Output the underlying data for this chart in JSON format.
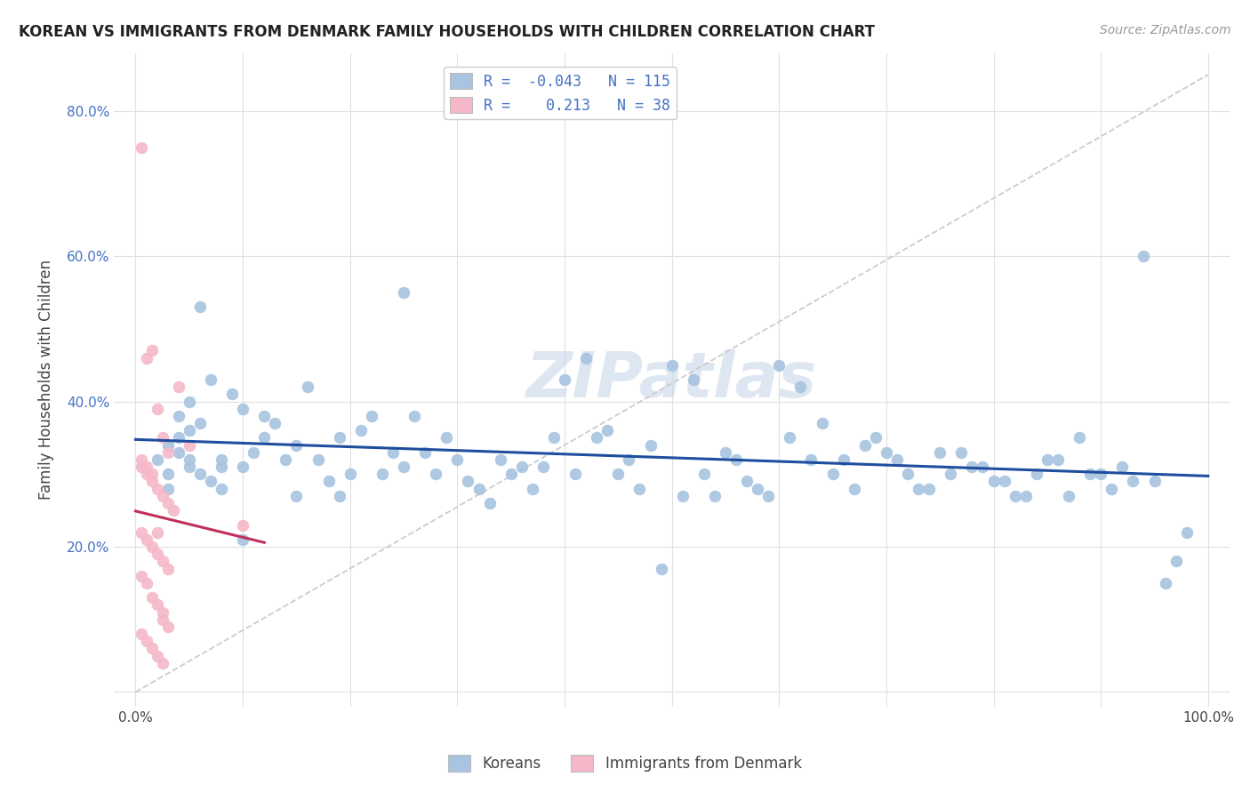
{
  "title": "KOREAN VS IMMIGRANTS FROM DENMARK FAMILY HOUSEHOLDS WITH CHILDREN CORRELATION CHART",
  "source": "Source: ZipAtlas.com",
  "ylabel": "Family Households with Children",
  "korean_color": "#a8c4e0",
  "denmark_color": "#f4b8c8",
  "korean_R": -0.043,
  "korean_N": 115,
  "denmark_R": 0.213,
  "denmark_N": 38,
  "legend_R_color": "#4472c4",
  "background_color": "#ffffff",
  "watermark_text": "ZIPatlas",
  "watermark_color": "#c8d8e8",
  "grid_color": "#e0e0e0",
  "korean_line_color": "#1f4e9e",
  "denmark_line_color": "#c0305a",
  "diag_color": "#cccccc",
  "korean_scatter_x": [
    0.02,
    0.03,
    0.04,
    0.05,
    0.03,
    0.04,
    0.06,
    0.05,
    0.07,
    0.08,
    0.06,
    0.05,
    0.03,
    0.04,
    0.05,
    0.07,
    0.09,
    0.1,
    0.12,
    0.11,
    0.08,
    0.1,
    0.13,
    0.15,
    0.14,
    0.12,
    0.16,
    0.18,
    0.2,
    0.19,
    0.21,
    0.22,
    0.17,
    0.19,
    0.23,
    0.25,
    0.26,
    0.28,
    0.3,
    0.32,
    0.27,
    0.29,
    0.31,
    0.33,
    0.35,
    0.37,
    0.4,
    0.38,
    0.42,
    0.44,
    0.41,
    0.43,
    0.46,
    0.48,
    0.5,
    0.52,
    0.49,
    0.51,
    0.53,
    0.55,
    0.57,
    0.59,
    0.56,
    0.58,
    0.6,
    0.62,
    0.64,
    0.61,
    0.63,
    0.65,
    0.67,
    0.7,
    0.72,
    0.68,
    0.71,
    0.73,
    0.75,
    0.78,
    0.8,
    0.82,
    0.85,
    0.88,
    0.9,
    0.92,
    0.95,
    0.34,
    0.36,
    0.39,
    0.45,
    0.47,
    0.54,
    0.66,
    0.69,
    0.74,
    0.76,
    0.77,
    0.79,
    0.81,
    0.83,
    0.84,
    0.86,
    0.87,
    0.89,
    0.91,
    0.93,
    0.94,
    0.96,
    0.97,
    0.98,
    0.24,
    0.06,
    0.08,
    0.1,
    0.15,
    0.25
  ],
  "korean_scatter_y": [
    0.32,
    0.3,
    0.33,
    0.31,
    0.28,
    0.35,
    0.3,
    0.32,
    0.29,
    0.31,
    0.37,
    0.36,
    0.34,
    0.38,
    0.4,
    0.43,
    0.41,
    0.39,
    0.35,
    0.33,
    0.28,
    0.31,
    0.37,
    0.34,
    0.32,
    0.38,
    0.42,
    0.29,
    0.3,
    0.27,
    0.36,
    0.38,
    0.32,
    0.35,
    0.3,
    0.31,
    0.38,
    0.3,
    0.32,
    0.28,
    0.33,
    0.35,
    0.29,
    0.26,
    0.3,
    0.28,
    0.43,
    0.31,
    0.46,
    0.36,
    0.3,
    0.35,
    0.32,
    0.34,
    0.45,
    0.43,
    0.17,
    0.27,
    0.3,
    0.33,
    0.29,
    0.27,
    0.32,
    0.28,
    0.45,
    0.42,
    0.37,
    0.35,
    0.32,
    0.3,
    0.28,
    0.33,
    0.3,
    0.34,
    0.32,
    0.28,
    0.33,
    0.31,
    0.29,
    0.27,
    0.32,
    0.35,
    0.3,
    0.31,
    0.29,
    0.32,
    0.31,
    0.35,
    0.3,
    0.28,
    0.27,
    0.32,
    0.35,
    0.28,
    0.3,
    0.33,
    0.31,
    0.29,
    0.27,
    0.3,
    0.32,
    0.27,
    0.3,
    0.28,
    0.29,
    0.6,
    0.15,
    0.18,
    0.22,
    0.33,
    0.53,
    0.32,
    0.21,
    0.27,
    0.55
  ],
  "denmark_scatter_x": [
    0.005,
    0.01,
    0.015,
    0.02,
    0.025,
    0.03,
    0.005,
    0.01,
    0.015,
    0.02,
    0.025,
    0.03,
    0.035,
    0.005,
    0.01,
    0.015,
    0.02,
    0.025,
    0.03,
    0.005,
    0.01,
    0.015,
    0.02,
    0.025,
    0.03,
    0.005,
    0.01,
    0.015,
    0.02,
    0.025,
    0.04,
    0.05,
    0.1,
    0.005,
    0.01,
    0.015,
    0.02,
    0.025
  ],
  "denmark_scatter_y": [
    0.75,
    0.46,
    0.47,
    0.39,
    0.35,
    0.33,
    0.31,
    0.3,
    0.29,
    0.28,
    0.27,
    0.26,
    0.25,
    0.22,
    0.21,
    0.2,
    0.19,
    0.18,
    0.17,
    0.16,
    0.15,
    0.13,
    0.12,
    0.11,
    0.09,
    0.08,
    0.07,
    0.06,
    0.05,
    0.04,
    0.42,
    0.34,
    0.23,
    0.32,
    0.31,
    0.3,
    0.22,
    0.1
  ]
}
